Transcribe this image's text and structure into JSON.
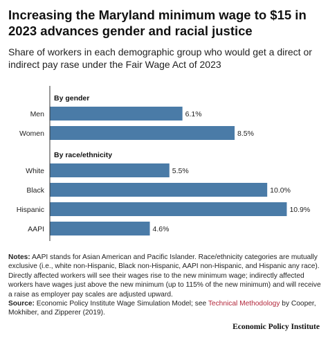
{
  "title": "Increasing the Maryland minimum wage to $15 in 2023 advances gender and racial justice",
  "subtitle": "Share of workers in each demographic group who would get a direct or indirect pay rase under the Fair Wage Act of 2023",
  "notes": {
    "label": "Notes:",
    "text": "AAPI stands for Asian American and Pacific Islander. Race/ethnicity categories are mutually exclusive (i.e., white non-Hispanic, Black non-Hispanic, AAPI non-Hispanic, and Hispanic any race). Directly affected workers will see their wages rise to the new minimum wage; indirectly affected workers have wages just above the new minimum (up to 115% of the new minimum) and will receive a raise as employer pay scales are adjusted upward."
  },
  "source": {
    "label": "Source:",
    "text_before": "Economic Policy Institute Wage Simulation Model; see",
    "link_text": "Technical Methodology",
    "text_after": "by Cooper, Mokhiber, and Zipperer (2019)."
  },
  "org": "Economic Policy Institute",
  "colors": {
    "bar": "#4a7ba7",
    "axis": "#333333",
    "link": "#b2263a"
  },
  "chart_data": {
    "type": "bar",
    "orientation": "horizontal",
    "xlim": [
      0,
      12
    ],
    "value_suffix": "%",
    "groups": [
      {
        "label": "By gender",
        "categories": [
          "Men",
          "Women"
        ],
        "values": [
          6.1,
          8.5
        ]
      },
      {
        "label": "By race/ethnicity",
        "categories": [
          "White",
          "Black",
          "Hispanic",
          "AAPI"
        ],
        "values": [
          5.5,
          10.0,
          10.9,
          4.6
        ]
      }
    ]
  }
}
